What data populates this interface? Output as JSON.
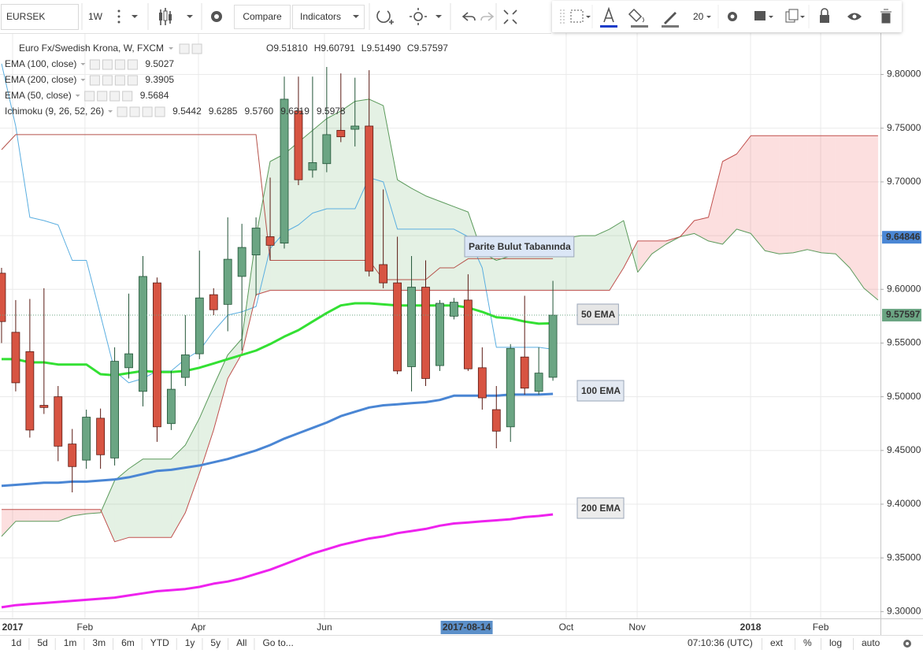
{
  "toolbar": {
    "symbol": "EURSEK",
    "interval": "1W",
    "compare": "Compare",
    "indicators": "Indicators",
    "font_size": "20"
  },
  "bottom_bar": {
    "ranges": [
      "1d",
      "5d",
      "1m",
      "3m",
      "6m",
      "YTD",
      "1y",
      "5y",
      "All"
    ],
    "goto": "Go to...",
    "time": "07:10:36 (UTC)",
    "options": [
      "ext",
      "%",
      "log",
      "auto"
    ]
  },
  "chart_data": {
    "type": "candlestick",
    "title": "Euro Fx/Swedish Krona, W, FXCM",
    "ohlc_legend": [
      {
        "key": "O",
        "value": 9.5181,
        "label": "9.51810"
      },
      {
        "key": "H",
        "value": 9.60791
      },
      {
        "key": "L",
        "value": 9.5149,
        "label": "9.51490"
      },
      {
        "key": "C",
        "value": 9.57597
      }
    ],
    "xlim": [
      -0.11,
      62.17
    ],
    "xticks": [
      {
        "value": 0.78,
        "label": "2017"
      },
      {
        "value": 5.9,
        "label": "Feb"
      },
      {
        "value": 13.93,
        "label": "Apr"
      },
      {
        "value": 22.84,
        "label": "Jun"
      },
      {
        "value": 39.94,
        "label": "Oct"
      },
      {
        "value": 44.96,
        "label": "Nov"
      },
      {
        "value": 52.98,
        "label": "2018"
      },
      {
        "value": 57.94,
        "label": "Feb"
      }
    ],
    "crosshair_x": {
      "value": 32.9,
      "label": "2017-08-14"
    },
    "ylim": [
      9.29,
      9.84
    ],
    "yticks": [
      {
        "value": 9.3,
        "label": "9.30000"
      },
      {
        "value": 9.35,
        "label": "9.35000"
      },
      {
        "value": 9.4,
        "label": "9.40000"
      },
      {
        "value": 9.45,
        "label": "9.45000"
      },
      {
        "value": 9.5,
        "label": "9.50000"
      },
      {
        "value": 9.55,
        "label": "9.55000"
      },
      {
        "value": 9.6,
        "label": "9.60000"
      },
      {
        "value": 9.65,
        "label": "9.65000"
      },
      {
        "value": 9.7,
        "label": "9.70000"
      },
      {
        "value": 9.75,
        "label": "9.75000"
      },
      {
        "value": 9.8,
        "label": "9.80000"
      }
    ],
    "grid": true,
    "up_color": "#6ba583",
    "down_color": "#d75442",
    "up_border": "#225437",
    "down_border": "#5b1a13",
    "open": [
      9.615,
      9.56,
      9.542,
      9.492,
      9.5,
      9.456,
      9.441,
      9.48,
      9.443,
      9.527,
      9.505,
      9.606,
      9.475,
      9.518,
      9.54,
      9.595,
      9.586,
      9.612,
      9.632,
      9.649,
      9.643,
      9.766,
      9.711,
      9.717,
      9.748,
      9.749,
      9.752,
      9.623,
      9.606,
      9.528,
      9.602,
      9.529,
      9.575,
      9.59,
      9.527,
      9.488,
      9.472,
      9.537,
      9.505,
      9.5181
    ],
    "high": [
      9.62,
      9.59,
      9.591,
      9.601,
      9.51,
      9.47,
      9.488,
      9.489,
      9.546,
      9.596,
      9.631,
      9.611,
      9.524,
      9.576,
      9.636,
      9.601,
      9.667,
      9.661,
      9.667,
      9.704,
      9.798,
      9.798,
      9.798,
      9.807,
      9.801,
      9.797,
      9.804,
      9.693,
      9.649,
      9.631,
      9.627,
      9.59,
      9.592,
      9.614,
      9.546,
      9.51,
      9.549,
      9.594,
      9.546,
      9.60791
    ],
    "low": [
      9.55,
      9.505,
      9.462,
      9.484,
      9.44,
      9.411,
      9.433,
      9.433,
      9.436,
      9.517,
      9.491,
      9.458,
      9.469,
      9.51,
      9.535,
      9.576,
      9.561,
      9.543,
      9.594,
      9.627,
      9.638,
      9.697,
      9.704,
      9.709,
      9.737,
      9.733,
      9.612,
      9.601,
      9.521,
      9.505,
      9.51,
      9.524,
      9.572,
      9.524,
      9.488,
      9.452,
      9.458,
      9.502,
      9.502,
      9.5149
    ],
    "close": [
      9.57,
      9.513,
      9.469,
      9.49,
      9.454,
      9.435,
      9.481,
      9.446,
      9.533,
      9.54,
      9.612,
      9.472,
      9.507,
      9.539,
      9.592,
      9.581,
      9.628,
      9.639,
      9.657,
      9.641,
      9.777,
      9.702,
      9.718,
      9.744,
      9.742,
      9.752,
      9.617,
      9.606,
      9.524,
      9.602,
      9.517,
      9.587,
      9.588,
      9.526,
      9.499,
      9.468,
      9.545,
      9.508,
      9.522,
      9.57597
    ],
    "indicators": [
      {
        "name": "EMA (100, close)",
        "legend_values": [
          9.5027
        ],
        "legend_colors": [
          "#3d7ac9"
        ],
        "lines": [
          {
            "color": "#4a86d4",
            "width": 3,
            "values": [
              9.417,
              9.418,
              9.419,
              9.42,
              9.42,
              9.421,
              9.421,
              9.422,
              9.423,
              9.425,
              9.428,
              9.431,
              9.432,
              9.434,
              9.436,
              9.439,
              9.442,
              9.446,
              9.45,
              9.455,
              9.461,
              9.466,
              9.471,
              9.476,
              9.482,
              9.486,
              9.49,
              9.492,
              9.493,
              9.494,
              9.495,
              9.497,
              9.501,
              9.501,
              9.501,
              9.501,
              9.502,
              9.502,
              9.502,
              9.5027
            ]
          }
        ]
      },
      {
        "name": "EMA (200, close)",
        "legend_values": [
          9.3905
        ],
        "legend_colors": [
          "#d81bd8"
        ],
        "lines": [
          {
            "color": "#ee22ee",
            "width": 3,
            "values": [
              9.304,
              9.306,
              9.307,
              9.308,
              9.309,
              9.31,
              9.311,
              9.312,
              9.313,
              9.315,
              9.317,
              9.319,
              9.32,
              9.321,
              9.323,
              9.326,
              9.328,
              9.331,
              9.335,
              9.339,
              9.344,
              9.349,
              9.354,
              9.358,
              9.362,
              9.365,
              9.368,
              9.37,
              9.373,
              9.375,
              9.377,
              9.38,
              9.382,
              9.383,
              9.384,
              9.385,
              9.386,
              9.388,
              9.389,
              9.3905
            ]
          }
        ]
      },
      {
        "name": "EMA (50, close)",
        "legend_values": [
          9.5684
        ],
        "legend_colors": [
          "#1fd11f"
        ],
        "lines": [
          {
            "color": "#33e033",
            "width": 3,
            "values": [
              9.535,
              9.535,
              9.532,
              9.532,
              9.53,
              9.53,
              9.53,
              9.521,
              9.52,
              9.522,
              9.524,
              9.523,
              9.523,
              9.524,
              9.527,
              9.531,
              9.535,
              9.539,
              9.543,
              9.549,
              9.556,
              9.562,
              9.57,
              9.578,
              9.585,
              9.587,
              9.587,
              9.586,
              9.585,
              9.585,
              9.585,
              9.585,
              9.585,
              9.583,
              9.579,
              9.574,
              9.573,
              9.57,
              9.568,
              9.5684
            ]
          }
        ]
      },
      {
        "name": "Ichimoku (9, 26, 52, 26)",
        "legend_values": [
          9.5442,
          9.6285,
          {
            "value": 9.576,
            "label": "9.5760"
          },
          9.6319,
          9.5978
        ],
        "legend_colors": [
          "#2a95cf",
          "#a0322c",
          "#4e9a2e",
          "#4e9a2e",
          "#c0392b"
        ],
        "cloud": {
          "up": "rgba(90,170,90,0.16)",
          "down": "rgba(240,80,80,0.18)"
        },
        "lines": [
          {
            "color": "#5aaee0",
            "width": 1,
            "values": [
              9.81,
              9.752,
              9.667,
              9.664,
              9.66,
              9.627,
              9.627,
              9.576,
              9.524,
              9.513,
              9.517,
              9.524,
              9.524,
              9.535,
              9.543,
              9.561,
              9.576,
              9.579,
              9.584,
              9.638,
              9.653,
              9.66,
              9.671,
              9.675,
              9.675,
              9.675,
              9.704,
              9.7,
              9.656,
              9.656,
              9.656,
              9.656,
              9.656,
              9.649,
              9.62,
              9.546,
              9.546,
              9.546,
              9.546,
              9.5442
            ]
          },
          {
            "color": "#b5524a",
            "width": 1,
            "values": [
              9.73,
              9.744,
              9.744,
              9.744,
              9.744,
              9.744,
              9.744,
              9.744,
              9.744,
              9.744,
              9.744,
              9.744,
              9.744,
              9.744,
              9.744,
              9.744,
              9.744,
              9.744,
              9.744,
              9.627,
              9.627,
              9.627,
              9.627,
              9.627,
              9.627,
              9.627,
              9.627,
              9.609,
              9.609,
              9.609,
              9.609,
              9.62,
              9.62,
              9.6285,
              9.6285,
              9.6285,
              9.6285,
              9.6285,
              9.6285,
              9.6285
            ]
          },
          {
            "color": "#5b9a5b",
            "width": 1,
            "values": [
              9.37,
              9.384,
              9.384,
              9.384,
              9.384,
              9.389,
              9.391,
              9.392,
              9.422,
              9.433,
              9.442,
              9.442,
              9.442,
              9.455,
              9.48,
              9.51,
              9.539,
              9.554,
              9.649,
              9.719,
              9.726,
              9.737,
              9.748,
              9.759,
              9.766,
              9.775,
              9.777,
              9.771,
              9.702,
              9.694,
              9.687,
              9.682,
              9.677,
              9.672,
              9.634,
              9.627,
              9.631,
              9.636,
              9.642,
              9.645,
              9.648,
              9.65,
              9.65,
              9.656,
              9.664,
              9.616,
              9.633,
              9.642,
              9.649,
              9.652,
              9.645,
              9.642,
              9.656,
              9.652,
              9.636,
              9.633,
              9.634,
              9.637,
              9.634,
              9.633,
              9.62,
              9.601,
              9.59
            ]
          },
          {
            "color": "#c0504d",
            "width": 1,
            "values": [
              9.395,
              9.395,
              9.395,
              9.395,
              9.395,
              9.395,
              9.395,
              9.395,
              9.365,
              9.369,
              9.369,
              9.369,
              9.369,
              9.392,
              9.429,
              9.469,
              9.517,
              9.54,
              9.595,
              9.599,
              9.599,
              9.599,
              9.599,
              9.599,
              9.599,
              9.599,
              9.599,
              9.599,
              9.599,
              9.599,
              9.599,
              9.599,
              9.599,
              9.599,
              9.599,
              9.599,
              9.599,
              9.599,
              9.599,
              9.599,
              9.599,
              9.599,
              9.599,
              9.599,
              9.62,
              9.645,
              9.645,
              9.645,
              9.649,
              9.664,
              9.667,
              9.719,
              9.726,
              9.743,
              9.743,
              9.743,
              9.743,
              9.743,
              9.743,
              9.743,
              9.743,
              9.743,
              9.743
            ]
          }
        ]
      }
    ],
    "price_labels": [
      {
        "value": 9.64846,
        "color": "#4a86d4"
      },
      {
        "value": 9.57597,
        "color": "#6ba583",
        "dotted_line": true
      }
    ],
    "annotations": [
      {
        "text": "Parite Bulut Tabanında",
        "color": "#1530c8",
        "background": "#dbe6f6"
      },
      {
        "text": "50 EMA",
        "color": "#22cc22",
        "background": "#e6e6e6"
      },
      {
        "text": "100 EMA",
        "color": "#4a86d4",
        "background": "#e3e9f2"
      },
      {
        "text": "200 EMA",
        "color": "#e020e0",
        "background": "#ececec"
      }
    ]
  }
}
